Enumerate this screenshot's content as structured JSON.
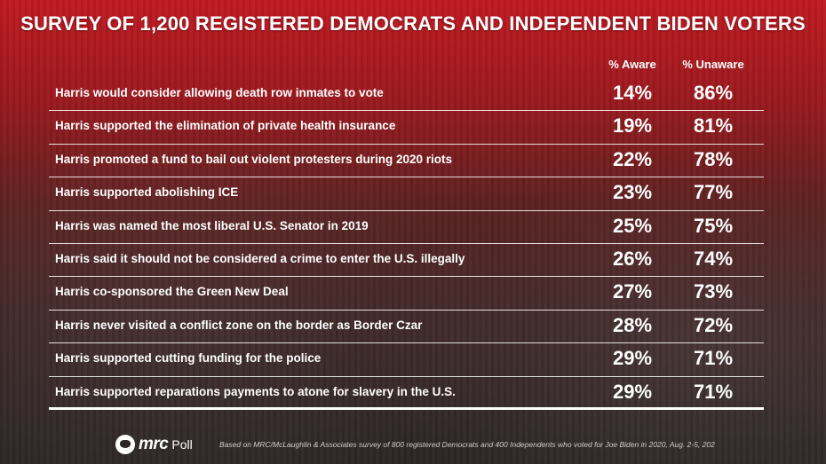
{
  "title": "SURVEY OF 1,200 REGISTERED DEMOCRATS AND INDEPENDENT BIDEN VOTERS",
  "columns": {
    "aware": "% Aware",
    "unaware": "% Unaware"
  },
  "rows": [
    {
      "statement": "Harris would consider allowing death row inmates to vote",
      "aware": "14%",
      "unaware": "86%"
    },
    {
      "statement": "Harris supported the elimination of private health insurance",
      "aware": "19%",
      "unaware": "81%"
    },
    {
      "statement": "Harris promoted a fund to bail out violent protesters during 2020 riots",
      "aware": "22%",
      "unaware": "78%"
    },
    {
      "statement": "Harris supported abolishing ICE",
      "aware": "23%",
      "unaware": "77%"
    },
    {
      "statement": "Harris was named the most liberal U.S. Senator in 2019",
      "aware": "25%",
      "unaware": "75%"
    },
    {
      "statement": "Harris said it should not be considered a crime to enter the U.S. illegally",
      "aware": "26%",
      "unaware": "74%"
    },
    {
      "statement": "Harris co-sponsored the Green New Deal",
      "aware": "27%",
      "unaware": "73%"
    },
    {
      "statement": "Harris never visited a conflict zone on the border as Border Czar",
      "aware": "28%",
      "unaware": "72%"
    },
    {
      "statement": "Harris supported cutting funding for the police",
      "aware": "29%",
      "unaware": "71%"
    },
    {
      "statement": "Harris supported reparations payments to atone for slavery in the U.S.",
      "aware": "29%",
      "unaware": "71%"
    }
  ],
  "footer": {
    "brand": "mrc",
    "brand_suffix": "Poll",
    "source": "Based on MRC/McLaughlin & Associates survey of 800 registered Democrats and 400 Independents who voted for Joe Biden in 2020, Aug. 2-5, 202"
  }
}
